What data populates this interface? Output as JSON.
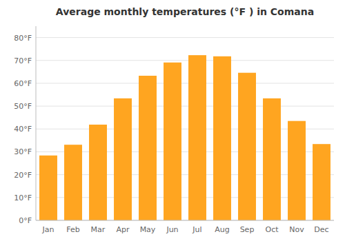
{
  "chart_data": {
    "type": "bar",
    "title": "Average monthly temperatures (°F ) in Comana",
    "categories": [
      "Jan",
      "Feb",
      "Mar",
      "Apr",
      "May",
      "Jun",
      "Jul",
      "Aug",
      "Sep",
      "Oct",
      "Nov",
      "Dec"
    ],
    "values": [
      28.4,
      33.1,
      41.9,
      53.4,
      63.3,
      69.1,
      72.3,
      71.8,
      64.6,
      53.4,
      43.5,
      33.4
    ],
    "color": "#FFA520",
    "ylim": [
      0,
      85
    ],
    "yticks": [
      {
        "value": 0,
        "label": "0°F"
      },
      {
        "value": 10,
        "label": "10°F"
      },
      {
        "value": 20,
        "label": "20°F"
      },
      {
        "value": 30,
        "label": "30°F"
      },
      {
        "value": 40,
        "label": "40°F"
      },
      {
        "value": 50,
        "label": "50°F"
      },
      {
        "value": 60,
        "label": "60°F"
      },
      {
        "value": 70,
        "label": "70°F"
      },
      {
        "value": 80,
        "label": "80°F"
      }
    ],
    "grid": true
  }
}
